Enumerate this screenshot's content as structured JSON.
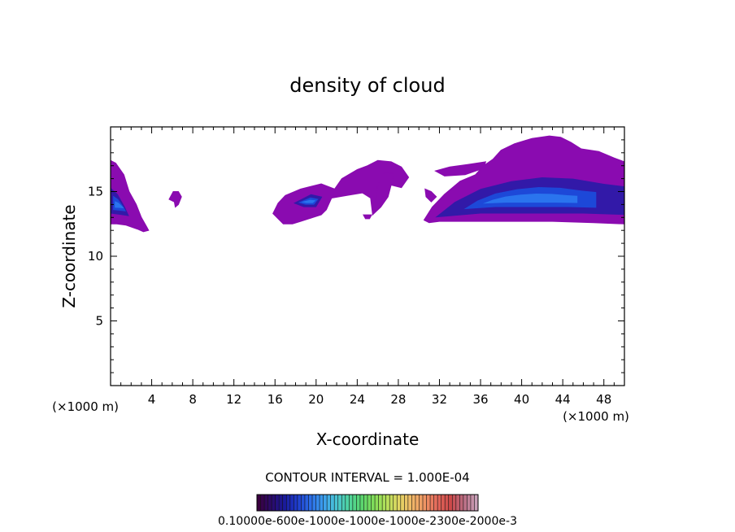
{
  "chart_data": {
    "type": "contour",
    "title": "density of cloud",
    "xlabel": "X-coordinate",
    "ylabel": "Z-coordinate",
    "x_unit_left": "(×1000 m)",
    "x_unit_right": "(×1000 m)",
    "xlim": [
      0,
      50
    ],
    "ylim": [
      0,
      20
    ],
    "x_ticks": [
      4,
      8,
      12,
      16,
      20,
      24,
      28,
      32,
      36,
      40,
      44,
      48
    ],
    "y_ticks": [
      5,
      10,
      15
    ],
    "contour_interval_label": "CONTOUR INTERVAL = 1.000E-04",
    "colorbar_label": "0.10000e-600e-1000e-1000e-1000e-2300e-2000e-3",
    "cloud_regions": [
      {
        "name": "left-edge",
        "points": [
          [
            0,
            12.5
          ],
          [
            0,
            17.4
          ],
          [
            0.5,
            17.2
          ],
          [
            1.3,
            16.3
          ],
          [
            1.8,
            15
          ],
          [
            2.5,
            14
          ],
          [
            3,
            13
          ],
          [
            3.5,
            12.3
          ],
          [
            3.7,
            12
          ],
          [
            3.2,
            11.9
          ],
          [
            2.6,
            12.1
          ],
          [
            1.5,
            12.4
          ],
          [
            0.6,
            12.5
          ]
        ],
        "core": [
          [
            0,
            13.3
          ],
          [
            0,
            15.3
          ],
          [
            0.7,
            14.8
          ],
          [
            1.4,
            13.8
          ],
          [
            1.8,
            13.1
          ],
          [
            1,
            13.2
          ]
        ]
      },
      {
        "name": "small-blob",
        "points": [
          [
            5.7,
            14.4
          ],
          [
            6.1,
            15
          ],
          [
            6.6,
            15
          ],
          [
            6.9,
            14.6
          ],
          [
            6.6,
            14
          ],
          [
            6.3,
            13.8
          ],
          [
            6.2,
            14.2
          ]
        ],
        "core": []
      },
      {
        "name": "mid-cloud",
        "points": [
          [
            15.8,
            13.3
          ],
          [
            16.3,
            14.1
          ],
          [
            17,
            14.7
          ],
          [
            18.5,
            15.2
          ],
          [
            20.5,
            15.6
          ],
          [
            21.8,
            15.2
          ],
          [
            22.5,
            16
          ],
          [
            24,
            16.7
          ],
          [
            25,
            17
          ],
          [
            26,
            17.4
          ],
          [
            27.3,
            17.3
          ],
          [
            28.3,
            16.9
          ],
          [
            29,
            16.1
          ],
          [
            28.3,
            15.3
          ],
          [
            27.3,
            15.5
          ],
          [
            27,
            14.6
          ],
          [
            26.3,
            13.8
          ],
          [
            25.5,
            13.2
          ],
          [
            25.3,
            14.5
          ],
          [
            24.5,
            14.9
          ],
          [
            23,
            14.7
          ],
          [
            21.5,
            14.5
          ],
          [
            21,
            13.6
          ],
          [
            20.5,
            13.2
          ],
          [
            19.7,
            13
          ],
          [
            18.5,
            12.7
          ],
          [
            17.7,
            12.5
          ],
          [
            16.8,
            12.5
          ]
        ],
        "core": [
          [
            17.8,
            14.1
          ],
          [
            19.5,
            14.8
          ],
          [
            20.6,
            14.6
          ],
          [
            20,
            13.8
          ],
          [
            18.8,
            13.8
          ]
        ]
      },
      {
        "name": "mid-cloud-core",
        "points": [
          [
            25.8,
            14.3
          ],
          [
            26,
            15.5
          ],
          [
            26.7,
            16.5
          ],
          [
            27.6,
            16.4
          ],
          [
            27.3,
            15.7
          ],
          [
            26.6,
            14.9
          ],
          [
            26.2,
            13.9
          ]
        ],
        "core": []
      },
      {
        "name": "speck-a",
        "points": [
          [
            24.6,
            13.2
          ],
          [
            25.4,
            13.2
          ],
          [
            25.2,
            12.9
          ],
          [
            24.8,
            12.9
          ]
        ],
        "core": []
      },
      {
        "name": "speck-b",
        "points": [
          [
            30.6,
            15.2
          ],
          [
            31.2,
            15
          ],
          [
            31.7,
            14.6
          ],
          [
            31.2,
            14.2
          ],
          [
            30.7,
            14.6
          ]
        ],
        "core": []
      },
      {
        "name": "speck-c",
        "points": [
          [
            31.6,
            16.6
          ],
          [
            33,
            16.9
          ],
          [
            34.8,
            17.1
          ],
          [
            36.5,
            17.3
          ],
          [
            36.3,
            16.8
          ],
          [
            34.5,
            16.3
          ],
          [
            32.5,
            16.2
          ]
        ],
        "core": []
      },
      {
        "name": "right-cloud",
        "points": [
          [
            30.5,
            12.8
          ],
          [
            31.3,
            13.8
          ],
          [
            32.5,
            14.8
          ],
          [
            34,
            15.8
          ],
          [
            35.5,
            16.3
          ],
          [
            36.3,
            17
          ],
          [
            37.2,
            17.5
          ],
          [
            38,
            18.2
          ],
          [
            39.3,
            18.7
          ],
          [
            41,
            19.1
          ],
          [
            42.7,
            19.3
          ],
          [
            43.8,
            19.2
          ],
          [
            44.8,
            18.8
          ],
          [
            45.8,
            18.3
          ],
          [
            47.5,
            18.1
          ],
          [
            49,
            17.6
          ],
          [
            50,
            17.3
          ],
          [
            50,
            12.5
          ],
          [
            47,
            12.6
          ],
          [
            43,
            12.7
          ],
          [
            38,
            12.7
          ],
          [
            34,
            12.7
          ],
          [
            32,
            12.7
          ],
          [
            31,
            12.6
          ]
        ],
        "core": [
          [
            31.6,
            13
          ],
          [
            33.5,
            14.2
          ],
          [
            36,
            15.2
          ],
          [
            39,
            15.8
          ],
          [
            42,
            16.1
          ],
          [
            45,
            16
          ],
          [
            48,
            15.6
          ],
          [
            50,
            15.4
          ],
          [
            50,
            13.2
          ],
          [
            46,
            13.3
          ],
          [
            41,
            13.3
          ],
          [
            36,
            13.3
          ],
          [
            33,
            13.1
          ]
        ]
      }
    ],
    "colorbar_stops": [
      "#3a0040",
      "#2a0a6a",
      "#1a1a9a",
      "#1e3ccc",
      "#2b6be6",
      "#3b9cee",
      "#49c3d8",
      "#4fd3a0",
      "#58d670",
      "#82dd58",
      "#b6e05a",
      "#e3d463",
      "#f0b768",
      "#ef9464",
      "#e2665a",
      "#cc4a4a",
      "#b96b80",
      "#c8a0b8"
    ]
  },
  "colors": {
    "outer": "#8a0bb0",
    "mid": "#3219a8",
    "inner": "#1d48d8",
    "core": "#2d7cf2"
  }
}
